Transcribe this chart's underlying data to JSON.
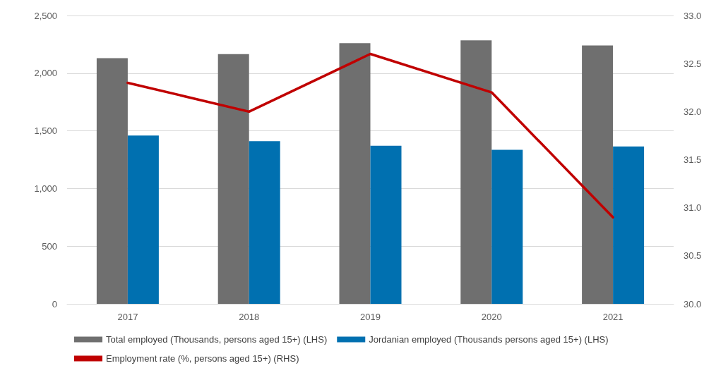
{
  "chart_data": {
    "type": "bar",
    "categories": [
      "2017",
      "2018",
      "2019",
      "2020",
      "2021"
    ],
    "series": [
      {
        "name": "Total employed (Thousands, persons aged 15+) (LHS)",
        "color": "#6f6f6f",
        "values": [
          2130,
          2165,
          2260,
          2285,
          2240
        ]
      },
      {
        "name": "Jordanian employed (Thousands persons aged 15+) (LHS)",
        "color": "#0070b0",
        "values": [
          1460,
          1410,
          1370,
          1335,
          1365
        ]
      },
      {
        "name": "Employment rate (%, persons aged 15+) (RHS)",
        "type": "line",
        "axis": "y2",
        "color": "#c00000",
        "values": [
          32.3,
          32.0,
          32.6,
          32.2,
          30.9
        ]
      }
    ],
    "ylim": [
      0,
      2500
    ],
    "yticks": [
      0,
      500,
      {
        "value": 1000,
        "label": "1,000"
      },
      {
        "value": 1500,
        "label": "1,500"
      },
      {
        "value": 2000,
        "label": "2,000"
      },
      {
        "value": 2500,
        "label": "2,500"
      }
    ],
    "y2lim": [
      30,
      33
    ],
    "y2ticks": [
      {
        "value": 30,
        "label": "30.0"
      },
      30.5,
      {
        "value": 31,
        "label": "31.0"
      },
      31.5,
      {
        "value": 32,
        "label": "32.0"
      },
      32.5,
      {
        "value": 33,
        "label": "33.0"
      }
    ],
    "grid": "y",
    "legend": "bottom",
    "marker": "none",
    "line_style": "solid"
  }
}
